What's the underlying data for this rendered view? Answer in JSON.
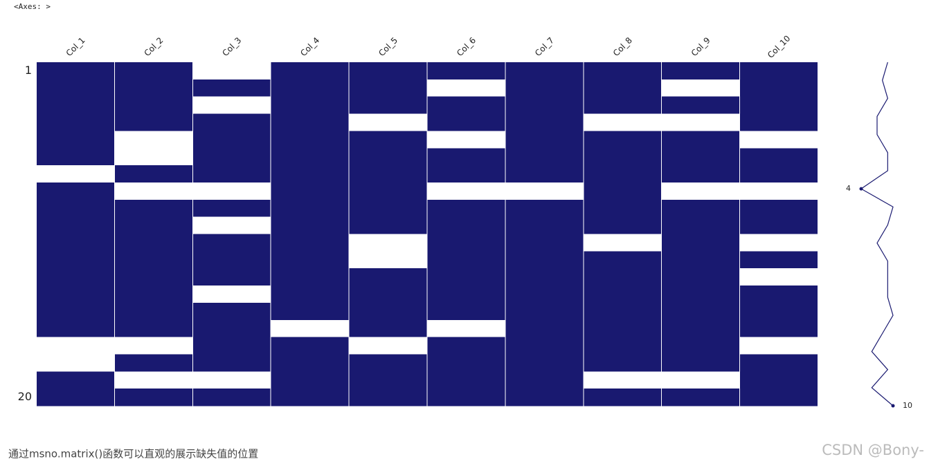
{
  "output_label": "<Axes: >",
  "chart_data": {
    "type": "matrix",
    "color": "#191970",
    "categories": [
      "Col_1",
      "Col_2",
      "Col_3",
      "Col_4",
      "Col_5",
      "Col_6",
      "Col_7",
      "Col_8",
      "Col_9",
      "Col_10"
    ],
    "yticks": [
      1,
      20
    ],
    "matrix": [
      [
        1,
        1,
        0,
        1,
        1,
        1,
        1,
        1,
        1,
        1
      ],
      [
        1,
        1,
        1,
        1,
        1,
        0,
        1,
        1,
        0,
        1
      ],
      [
        1,
        1,
        0,
        1,
        1,
        1,
        1,
        1,
        1,
        1
      ],
      [
        1,
        1,
        1,
        1,
        0,
        1,
        1,
        0,
        0,
        1
      ],
      [
        1,
        0,
        1,
        1,
        1,
        0,
        1,
        1,
        1,
        0
      ],
      [
        1,
        0,
        1,
        1,
        1,
        1,
        1,
        1,
        1,
        1
      ],
      [
        0,
        1,
        1,
        1,
        1,
        1,
        1,
        1,
        1,
        1
      ],
      [
        1,
        0,
        0,
        1,
        1,
        0,
        0,
        1,
        0,
        0
      ],
      [
        1,
        1,
        1,
        1,
        1,
        1,
        1,
        1,
        1,
        1
      ],
      [
        1,
        1,
        0,
        1,
        1,
        1,
        1,
        1,
        1,
        1
      ],
      [
        1,
        1,
        1,
        1,
        0,
        1,
        1,
        0,
        1,
        0
      ],
      [
        1,
        1,
        1,
        1,
        0,
        1,
        1,
        1,
        1,
        1
      ],
      [
        1,
        1,
        1,
        1,
        1,
        1,
        1,
        1,
        1,
        0
      ],
      [
        1,
        1,
        0,
        1,
        1,
        1,
        1,
        1,
        1,
        1
      ],
      [
        1,
        1,
        1,
        1,
        1,
        1,
        1,
        1,
        1,
        1
      ],
      [
        1,
        1,
        1,
        0,
        1,
        0,
        1,
        1,
        1,
        1
      ],
      [
        0,
        0,
        1,
        1,
        0,
        1,
        1,
        1,
        1,
        0
      ],
      [
        0,
        1,
        1,
        1,
        1,
        1,
        1,
        1,
        1,
        1
      ],
      [
        1,
        0,
        0,
        1,
        1,
        1,
        1,
        0,
        0,
        1
      ],
      [
        1,
        1,
        1,
        1,
        1,
        1,
        1,
        1,
        1,
        1
      ]
    ],
    "completeness": [
      9,
      8,
      9,
      7,
      7,
      9,
      9,
      4,
      10,
      9,
      7,
      9,
      9,
      9,
      10,
      8,
      6,
      9,
      6,
      10
    ]
  },
  "caption": "通过msno.matrix()函数可以直观的展示缺失值的位置",
  "watermark": "CSDN @Bony-"
}
